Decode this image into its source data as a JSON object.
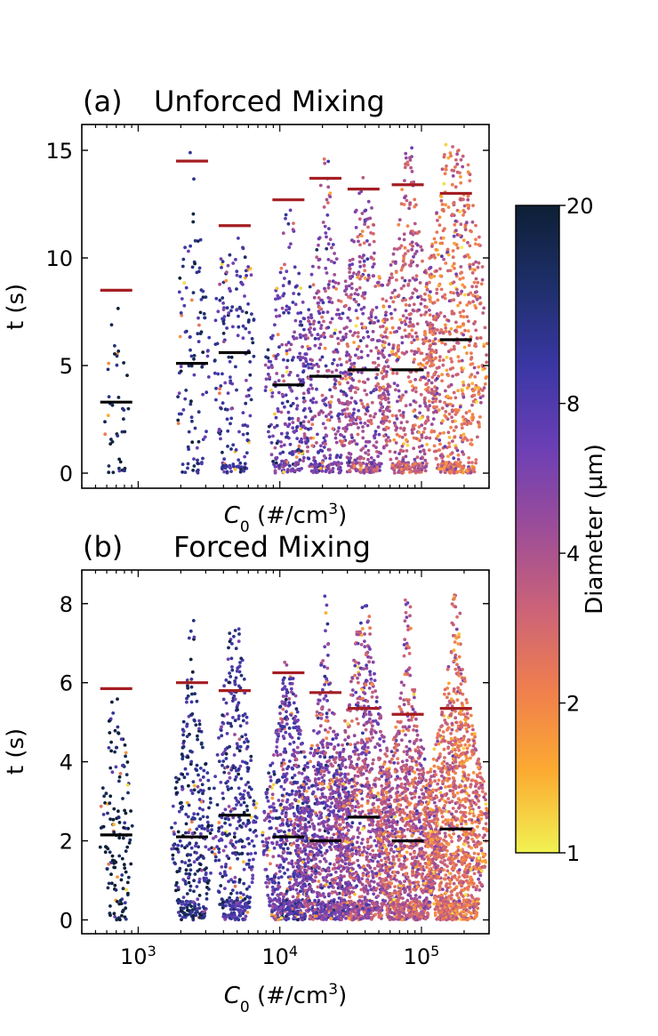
{
  "chart_data": [
    {
      "type": "scatter",
      "subtype": "swarm",
      "panel": "(a)",
      "title": "Unforced Mixing",
      "xlabel": "C0 (#/cm3)",
      "ylabel": "t (s)",
      "xscale": "log",
      "xlim": [
        400,
        300000
      ],
      "ylim": [
        -0.7,
        16.2
      ],
      "yticks": [
        "0",
        "5",
        "10",
        "15"
      ],
      "ytick_values": [
        0,
        5,
        10,
        15
      ],
      "groups": [
        {
          "c0": 700,
          "n_points": 40,
          "median": 3.3,
          "max_marker": 8.5,
          "max_point": 8.4
        },
        {
          "c0": 2400,
          "n_points": 110,
          "median": 5.1,
          "max_marker": 14.5,
          "max_point": 15.3
        },
        {
          "c0": 4800,
          "n_points": 190,
          "median": 5.6,
          "max_marker": 11.5,
          "max_point": 11.0
        },
        {
          "c0": 11500,
          "n_points": 300,
          "median": 4.1,
          "max_marker": 12.7,
          "max_point": 12.5
        },
        {
          "c0": 21000,
          "n_points": 360,
          "median": 4.5,
          "max_marker": 13.7,
          "max_point": 15.1
        },
        {
          "c0": 39000,
          "n_points": 460,
          "median": 4.8,
          "max_marker": 13.2,
          "max_point": 14.1
        },
        {
          "c0": 80000,
          "n_points": 560,
          "median": 4.8,
          "max_marker": 13.4,
          "max_point": 15.4
        },
        {
          "c0": 175000,
          "n_points": 700,
          "median": 6.2,
          "max_marker": 13.0,
          "max_point": 15.3
        }
      ]
    },
    {
      "type": "scatter",
      "subtype": "swarm",
      "panel": "(b)",
      "title": "Forced Mixing",
      "xlabel": "C0 (#/cm3)",
      "ylabel": "t (s)",
      "xscale": "log",
      "xlim": [
        400,
        300000
      ],
      "ylim": [
        -0.35,
        8.85
      ],
      "xticks": [
        "10",
        "10",
        "10"
      ],
      "xtick_exponents": [
        "3",
        "4",
        "5"
      ],
      "yticks": [
        "0",
        "2",
        "4",
        "6",
        "8"
      ],
      "ytick_values": [
        0,
        2,
        4,
        6,
        8
      ],
      "groups": [
        {
          "c0": 700,
          "n_points": 140,
          "median": 2.15,
          "max_marker": 5.85,
          "max_point": 5.6
        },
        {
          "c0": 2400,
          "n_points": 330,
          "median": 2.1,
          "max_marker": 6.0,
          "max_point": 7.8
        },
        {
          "c0": 4800,
          "n_points": 420,
          "median": 2.65,
          "max_marker": 5.8,
          "max_point": 7.6
        },
        {
          "c0": 11500,
          "n_points": 700,
          "median": 2.1,
          "max_marker": 6.25,
          "max_point": 6.55
        },
        {
          "c0": 21000,
          "n_points": 850,
          "median": 2.0,
          "max_marker": 5.75,
          "max_point": 8.4
        },
        {
          "c0": 39000,
          "n_points": 950,
          "median": 2.6,
          "max_marker": 5.35,
          "max_point": 8.05
        },
        {
          "c0": 80000,
          "n_points": 1100,
          "median": 2.0,
          "max_marker": 5.2,
          "max_point": 8.15
        },
        {
          "c0": 175000,
          "n_points": 1200,
          "median": 2.3,
          "max_marker": 5.35,
          "max_point": 8.25
        }
      ]
    }
  ],
  "colorbar": {
    "label": "Diameter (µm)",
    "scale": "log",
    "range": [
      1,
      20
    ],
    "ticks": [
      "1",
      "2",
      "4",
      "8",
      "20"
    ],
    "tick_values": [
      1,
      2,
      4,
      8,
      20
    ],
    "colormap": [
      "#f1f253",
      "#fcab31",
      "#f07f4d",
      "#cc6378",
      "#9d4d98",
      "#6c3fb5",
      "#3b37a5",
      "#1e2f6b",
      "#0d1f35"
    ]
  },
  "colors": {
    "median_line": "#000000",
    "max_marker": "#a41e23",
    "axis": "#000000"
  },
  "labels": {
    "xlabel_a": "C0 (#/cm3)",
    "xlabel_b": "C0 (#/cm3)",
    "ylabel_a": "t (s)",
    "ylabel_b": "t (s)"
  }
}
